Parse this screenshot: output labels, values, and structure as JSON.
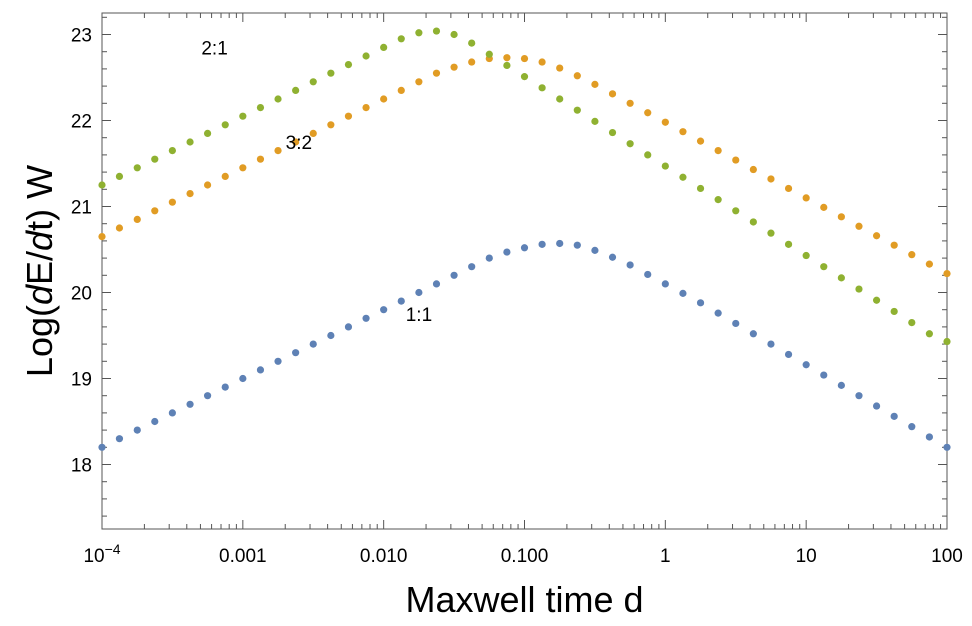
{
  "chart_data": {
    "type": "scatter",
    "title": "",
    "xlabel": "Maxwell time d",
    "ylabel_parts": [
      "Log(",
      "d",
      "E/",
      "d",
      "t)  W"
    ],
    "xscale": "log",
    "xlim": [
      0.0001,
      100
    ],
    "ylim": [
      17.25,
      23.25
    ],
    "grid": false,
    "legend": "none",
    "x_ticks": [
      {
        "value": 0.0001,
        "base": "10",
        "exp": "−4"
      },
      {
        "value": 0.001,
        "label": "0.001"
      },
      {
        "value": 0.01,
        "label": "0.010"
      },
      {
        "value": 0.1,
        "label": "0.100"
      },
      {
        "value": 1,
        "label": "1"
      },
      {
        "value": 10,
        "label": "10"
      },
      {
        "value": 100,
        "label": "100"
      }
    ],
    "y_ticks": [
      {
        "value": 18,
        "label": "18"
      },
      {
        "value": 19,
        "label": "19"
      },
      {
        "value": 20,
        "label": "20"
      },
      {
        "value": 21,
        "label": "21"
      },
      {
        "value": 22,
        "label": "22"
      },
      {
        "value": 23,
        "label": "23"
      }
    ],
    "series": [
      {
        "label": "1:1",
        "color": "#5e81b5",
        "x": [
          0.0001,
          0.000133,
          0.000178,
          0.000237,
          0.000316,
          0.000422,
          0.000562,
          0.00075,
          0.001,
          0.001334,
          0.001778,
          0.002371,
          0.003162,
          0.004217,
          0.005623,
          0.007499,
          0.01,
          0.013335,
          0.017783,
          0.023714,
          0.031623,
          0.04217,
          0.056234,
          0.074989,
          0.1,
          0.133352,
          0.177828,
          0.237137,
          0.316228,
          0.421697,
          0.562341,
          0.749894,
          1,
          1.333521,
          1.778279,
          2.371374,
          3.162278,
          4.216965,
          5.623413,
          7.498942,
          10,
          13.335214,
          17.782794,
          23.713737,
          31.622777,
          42.16965,
          56.234133,
          74.989421,
          100
        ],
        "y": [
          18.2,
          18.3,
          18.4,
          18.5,
          18.6,
          18.7,
          18.8,
          18.9,
          19.0,
          19.1,
          19.2,
          19.3,
          19.4,
          19.5,
          19.6,
          19.7,
          19.8,
          19.9,
          20.0,
          20.1,
          20.2,
          20.3,
          20.4,
          20.47,
          20.52,
          20.56,
          20.57,
          20.55,
          20.49,
          20.41,
          20.32,
          20.21,
          20.1,
          19.99,
          19.88,
          19.76,
          19.64,
          19.52,
          19.4,
          19.28,
          19.16,
          19.04,
          18.92,
          18.8,
          18.68,
          18.56,
          18.44,
          18.32,
          18.2
        ]
      },
      {
        "label": "3:2",
        "color": "#e19c24",
        "x": [
          0.0001,
          0.000133,
          0.000178,
          0.000237,
          0.000316,
          0.000422,
          0.000562,
          0.00075,
          0.001,
          0.001334,
          0.001778,
          0.002371,
          0.003162,
          0.004217,
          0.005623,
          0.007499,
          0.01,
          0.013335,
          0.017783,
          0.023714,
          0.031623,
          0.04217,
          0.056234,
          0.074989,
          0.1,
          0.133352,
          0.177828,
          0.237137,
          0.316228,
          0.421697,
          0.562341,
          0.749894,
          1,
          1.333521,
          1.778279,
          2.371374,
          3.162278,
          4.216965,
          5.623413,
          7.498942,
          10,
          13.335214,
          17.782794,
          23.713737,
          31.622777,
          42.16965,
          56.234133,
          74.989421,
          100
        ],
        "y": [
          20.65,
          20.75,
          20.85,
          20.95,
          21.05,
          21.15,
          21.25,
          21.35,
          21.45,
          21.55,
          21.65,
          21.75,
          21.85,
          21.95,
          22.05,
          22.15,
          22.25,
          22.35,
          22.45,
          22.55,
          22.62,
          22.68,
          22.72,
          22.73,
          22.72,
          22.68,
          22.61,
          22.52,
          22.42,
          22.31,
          22.2,
          22.09,
          21.98,
          21.87,
          21.76,
          21.65,
          21.54,
          21.43,
          21.32,
          21.21,
          21.1,
          20.99,
          20.88,
          20.77,
          20.66,
          20.55,
          20.44,
          20.33,
          20.22
        ]
      },
      {
        "label": "2:1",
        "color": "#8fb131",
        "x": [
          0.0001,
          0.000133,
          0.000178,
          0.000237,
          0.000316,
          0.000422,
          0.000562,
          0.00075,
          0.001,
          0.001334,
          0.001778,
          0.002371,
          0.003162,
          0.004217,
          0.005623,
          0.007499,
          0.01,
          0.013335,
          0.017783,
          0.023714,
          0.031623,
          0.04217,
          0.056234,
          0.074989,
          0.1,
          0.133352,
          0.177828,
          0.237137,
          0.316228,
          0.421697,
          0.562341,
          0.749894,
          1,
          1.333521,
          1.778279,
          2.371374,
          3.162278,
          4.216965,
          5.623413,
          7.498942,
          10,
          13.335214,
          17.782794,
          23.713737,
          31.622777,
          42.16965,
          56.234133,
          74.989421,
          100
        ],
        "y": [
          21.25,
          21.35,
          21.45,
          21.55,
          21.65,
          21.75,
          21.85,
          21.95,
          22.05,
          22.15,
          22.25,
          22.35,
          22.45,
          22.55,
          22.65,
          22.75,
          22.85,
          22.95,
          23.02,
          23.04,
          23.0,
          22.9,
          22.77,
          22.64,
          22.51,
          22.38,
          22.25,
          22.12,
          21.99,
          21.86,
          21.73,
          21.6,
          21.47,
          21.34,
          21.21,
          21.08,
          20.95,
          20.82,
          20.69,
          20.56,
          20.43,
          20.3,
          20.17,
          20.04,
          19.91,
          19.78,
          19.65,
          19.52,
          19.43
        ]
      }
    ],
    "annotations": [
      {
        "text": "2:1",
        "x": 0.00063,
        "y": 22.85
      },
      {
        "text": "3:2",
        "x": 0.0025,
        "y": 21.75
      },
      {
        "text": "1:1",
        "x": 0.0178,
        "y": 19.75
      }
    ]
  }
}
